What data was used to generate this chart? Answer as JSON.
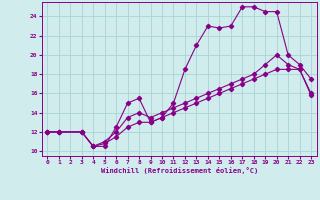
{
  "xlabel": "Windchill (Refroidissement éolien,°C)",
  "background_color": "#d0ecec",
  "grid_color": "#a8d4d4",
  "line_color": "#880088",
  "xlim": [
    -0.5,
    23.5
  ],
  "ylim": [
    9.5,
    25.5
  ],
  "xticks": [
    0,
    1,
    2,
    3,
    4,
    5,
    6,
    7,
    8,
    9,
    10,
    11,
    12,
    13,
    14,
    15,
    16,
    17,
    18,
    19,
    20,
    21,
    22,
    23
  ],
  "yticks": [
    10,
    12,
    14,
    16,
    18,
    20,
    22,
    24
  ],
  "series1_x": [
    0,
    1,
    3,
    4,
    5,
    6,
    7,
    8,
    9,
    10,
    11,
    12,
    13,
    14,
    15,
    16,
    17,
    18,
    19,
    20,
    21,
    22,
    23
  ],
  "series1_y": [
    12,
    12,
    12,
    10.5,
    10.5,
    12.5,
    15,
    15.5,
    13,
    13.5,
    15,
    18.5,
    21,
    23,
    22.8,
    23,
    25,
    25,
    24.5,
    24.5,
    20,
    19,
    17.5
  ],
  "series2_x": [
    0,
    1,
    3,
    4,
    5,
    6,
    7,
    8,
    9,
    10,
    11,
    12,
    13,
    14,
    15,
    16,
    17,
    18,
    19,
    20,
    21,
    22,
    23
  ],
  "series2_y": [
    12,
    12,
    12,
    10.5,
    11,
    12,
    13.5,
    14,
    13.5,
    14,
    14.5,
    15,
    15.5,
    16,
    16.5,
    17,
    17.5,
    18,
    19,
    20,
    19,
    18.5,
    15.8
  ],
  "series3_x": [
    0,
    1,
    3,
    4,
    5,
    6,
    7,
    8,
    9,
    10,
    11,
    12,
    13,
    14,
    15,
    16,
    17,
    18,
    19,
    20,
    21,
    22,
    23
  ],
  "series3_y": [
    12,
    12,
    12,
    10.5,
    10.8,
    11.5,
    12.5,
    13,
    13,
    13.5,
    14,
    14.5,
    15,
    15.5,
    16,
    16.5,
    17,
    17.5,
    18,
    18.5,
    18.5,
    18.5,
    16
  ]
}
